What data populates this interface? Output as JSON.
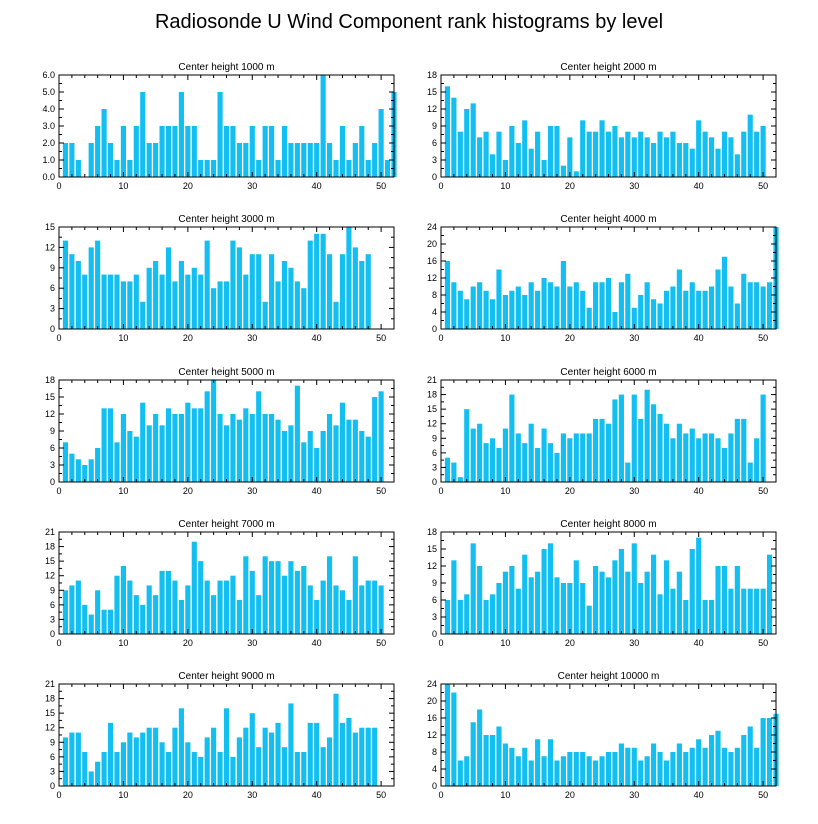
{
  "figure_title": "Radiosonde U Wind Component rank histograms by level",
  "chart_data": [
    {
      "type": "bar",
      "title": "Center height 1000 m",
      "ylim": [
        0,
        6
      ],
      "yticks": [
        "0.0",
        "1.0",
        "2.0",
        "3.0",
        "4.0",
        "5.0",
        "6.0"
      ],
      "xticks": [
        "0",
        "10",
        "20",
        "30",
        "40",
        "50"
      ],
      "values": [
        2,
        2,
        1,
        0,
        2,
        3,
        4,
        2,
        1,
        3,
        1,
        3,
        5,
        2,
        2,
        3,
        3,
        3,
        5,
        3,
        3,
        1,
        1,
        1,
        5,
        3,
        3,
        2,
        2,
        3,
        1,
        3,
        3,
        1,
        3,
        2,
        2,
        2,
        2,
        2,
        6,
        2,
        1,
        3,
        1,
        2,
        3,
        1,
        2,
        4,
        1,
        5
      ]
    },
    {
      "type": "bar",
      "title": "Center height 2000 m",
      "ylim": [
        0,
        18
      ],
      "yticks": [
        "0",
        "3",
        "6",
        "9",
        "12",
        "15",
        "18"
      ],
      "xticks": [
        "0",
        "10",
        "20",
        "30",
        "40",
        "50"
      ],
      "values": [
        16,
        14,
        8,
        12,
        13,
        7,
        8,
        4,
        8,
        3,
        9,
        6,
        10,
        5,
        8,
        3,
        9,
        9,
        2,
        7,
        1,
        10,
        8,
        8,
        10,
        8,
        9,
        7,
        8,
        7,
        8,
        7,
        6,
        8,
        7,
        8,
        6,
        6,
        5,
        10,
        8,
        7,
        5,
        8,
        7,
        4,
        8,
        11,
        8,
        9
      ]
    },
    {
      "type": "bar",
      "title": "Center height 3000 m",
      "ylim": [
        0,
        15
      ],
      "yticks": [
        "0",
        "3",
        "6",
        "9",
        "12",
        "15"
      ],
      "xticks": [
        "0",
        "10",
        "20",
        "30",
        "40",
        "50"
      ],
      "values": [
        13,
        11,
        10,
        8,
        12,
        13,
        8,
        8,
        8,
        7,
        7,
        8,
        4,
        9,
        10,
        8,
        12,
        7,
        10,
        8,
        9,
        8,
        13,
        6,
        7,
        7,
        13,
        12,
        8,
        11,
        11,
        4,
        11,
        7,
        10,
        9,
        7,
        6,
        13,
        14,
        14,
        11,
        4,
        11,
        15,
        12,
        10,
        11
      ]
    },
    {
      "type": "bar",
      "title": "Center height 4000 m",
      "ylim": [
        0,
        24
      ],
      "yticks": [
        "0",
        "4",
        "8",
        "12",
        "16",
        "20",
        "24"
      ],
      "xticks": [
        "0",
        "10",
        "20",
        "30",
        "40",
        "50"
      ],
      "values": [
        16,
        11,
        9,
        7,
        10,
        11,
        9,
        7,
        14,
        8,
        9,
        10,
        8,
        11,
        9,
        12,
        11,
        10,
        16,
        10,
        11,
        9,
        5,
        11,
        11,
        12,
        4,
        11,
        13,
        5,
        8,
        11,
        7,
        6,
        9,
        10,
        14,
        9,
        11,
        9,
        9,
        10,
        14,
        17,
        10,
        6,
        13,
        11,
        11,
        10,
        11,
        24
      ]
    },
    {
      "type": "bar",
      "title": "Center height 5000 m",
      "ylim": [
        0,
        18
      ],
      "yticks": [
        "0",
        "3",
        "6",
        "9",
        "12",
        "15",
        "18"
      ],
      "xticks": [
        "0",
        "10",
        "20",
        "30",
        "40",
        "50"
      ],
      "values": [
        7,
        5,
        4,
        3,
        4,
        6,
        13,
        13,
        7,
        12,
        9,
        8,
        14,
        10,
        12,
        10,
        13,
        12,
        12,
        14,
        13,
        13,
        16,
        18,
        12,
        10,
        12,
        11,
        13,
        12,
        16,
        12,
        12,
        11,
        9,
        10,
        17,
        7,
        9,
        6,
        9,
        12,
        10,
        14,
        11,
        11,
        9,
        8,
        15,
        16
      ]
    },
    {
      "type": "bar",
      "title": "Center height 6000 m",
      "ylim": [
        0,
        21
      ],
      "yticks": [
        "0",
        "3",
        "6",
        "9",
        "12",
        "15",
        "18",
        "21"
      ],
      "xticks": [
        "0",
        "10",
        "20",
        "30",
        "40",
        "50"
      ],
      "values": [
        5,
        4,
        1,
        15,
        11,
        12,
        8,
        9,
        7,
        11,
        18,
        10,
        8,
        12,
        7,
        11,
        8,
        6,
        10,
        9,
        10,
        10,
        10,
        13,
        13,
        12,
        17,
        18,
        4,
        18,
        13,
        19,
        16,
        14,
        12,
        9,
        12,
        10,
        11,
        9,
        10,
        10,
        9,
        7,
        10,
        13,
        13,
        4,
        9,
        18
      ]
    },
    {
      "type": "bar",
      "title": "Center height 7000 m",
      "ylim": [
        0,
        21
      ],
      "yticks": [
        "0",
        "3",
        "6",
        "9",
        "12",
        "15",
        "18",
        "21"
      ],
      "xticks": [
        "0",
        "10",
        "20",
        "30",
        "40",
        "50"
      ],
      "values": [
        9,
        10,
        11,
        6,
        4,
        9,
        5,
        5,
        12,
        14,
        11,
        8,
        6,
        10,
        8,
        13,
        13,
        11,
        7,
        10,
        19,
        15,
        11,
        8,
        11,
        11,
        12,
        7,
        16,
        13,
        8,
        16,
        15,
        15,
        12,
        15,
        13,
        14,
        10,
        7,
        11,
        16,
        10,
        9,
        7,
        16,
        10,
        11,
        11,
        10
      ]
    },
    {
      "type": "bar",
      "title": "Center height 8000 m",
      "ylim": [
        0,
        18
      ],
      "yticks": [
        "0",
        "3",
        "6",
        "9",
        "12",
        "15",
        "18"
      ],
      "xticks": [
        "0",
        "10",
        "20",
        "30",
        "40",
        "50"
      ],
      "values": [
        6,
        13,
        6,
        7,
        16,
        12,
        6,
        7,
        9,
        11,
        12,
        8,
        14,
        10,
        11,
        15,
        16,
        10,
        9,
        9,
        13,
        9,
        5,
        12,
        11,
        10,
        13,
        15,
        11,
        16,
        9,
        11,
        14,
        7,
        13,
        8,
        11,
        6,
        15,
        17,
        6,
        6,
        12,
        12,
        8,
        12,
        8,
        8,
        8,
        8,
        14
      ]
    },
    {
      "type": "bar",
      "title": "Center height 9000 m",
      "ylim": [
        0,
        21
      ],
      "yticks": [
        "0",
        "3",
        "6",
        "9",
        "12",
        "15",
        "18",
        "21"
      ],
      "xticks": [
        "0",
        "10",
        "20",
        "30",
        "40",
        "50"
      ],
      "values": [
        10,
        11,
        11,
        7,
        3,
        5,
        7,
        13,
        7,
        9,
        11,
        10,
        11,
        12,
        12,
        9,
        7,
        12,
        16,
        9,
        7,
        6,
        10,
        12,
        7,
        16,
        6,
        10,
        12,
        15,
        8,
        12,
        11,
        13,
        8,
        17,
        7,
        7,
        13,
        13,
        8,
        10,
        19,
        13,
        14,
        11,
        12,
        12,
        12
      ]
    },
    {
      "type": "bar",
      "title": "Center height 10000 m",
      "ylim": [
        0,
        24
      ],
      "yticks": [
        "0",
        "4",
        "8",
        "12",
        "16",
        "20",
        "24"
      ],
      "xticks": [
        "0",
        "10",
        "20",
        "30",
        "40",
        "50"
      ],
      "values": [
        24,
        22,
        6,
        7,
        15,
        18,
        12,
        12,
        14,
        10,
        9,
        7,
        9,
        6,
        11,
        7,
        11,
        6,
        7,
        8,
        8,
        8,
        7,
        6,
        7,
        8,
        8,
        10,
        9,
        9,
        6,
        7,
        10,
        8,
        6,
        8,
        10,
        8,
        9,
        11,
        9,
        12,
        13,
        9,
        8,
        9,
        12,
        14,
        9,
        16,
        16,
        17
      ]
    }
  ]
}
